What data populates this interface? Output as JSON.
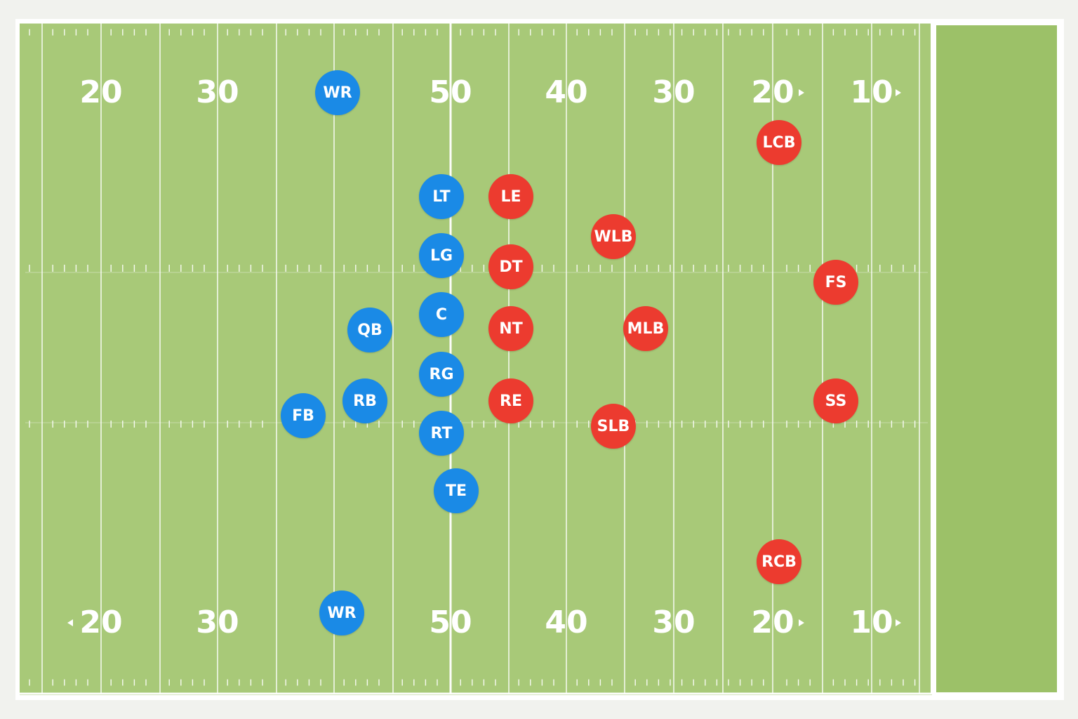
{
  "field": {
    "yard_numbers_top": [
      "20",
      "30",
      "50",
      "40",
      "30",
      "20",
      "10"
    ],
    "yard_numbers_bottom": [
      "20",
      "30",
      "50",
      "40",
      "30",
      "20",
      "10"
    ],
    "colors": {
      "grass": "#a8c978",
      "endzone": "#9cc168",
      "lines": "#ffffff",
      "offense": "#1a8ae6",
      "defense": "#ec3b2f"
    }
  },
  "offense": [
    {
      "label": "WR"
    },
    {
      "label": "LT"
    },
    {
      "label": "LG"
    },
    {
      "label": "C"
    },
    {
      "label": "QB"
    },
    {
      "label": "RG"
    },
    {
      "label": "RB"
    },
    {
      "label": "FB"
    },
    {
      "label": "RT"
    },
    {
      "label": "TE"
    },
    {
      "label": "WR"
    }
  ],
  "defense": [
    {
      "label": "LCB"
    },
    {
      "label": "LE"
    },
    {
      "label": "WLB"
    },
    {
      "label": "DT"
    },
    {
      "label": "FS"
    },
    {
      "label": "NT"
    },
    {
      "label": "MLB"
    },
    {
      "label": "RE"
    },
    {
      "label": "SS"
    },
    {
      "label": "SLB"
    },
    {
      "label": "RCB"
    }
  ]
}
